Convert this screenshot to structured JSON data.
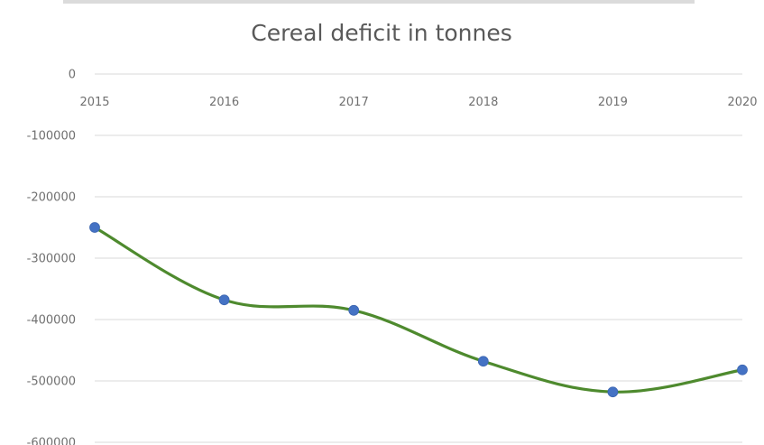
{
  "chart_data": {
    "type": "line",
    "title": "Cereal deficit in tonnes",
    "x": [
      "2015",
      "2016",
      "2017",
      "2018",
      "2019",
      "2020"
    ],
    "series": [
      {
        "values": [
          -250000,
          -368000,
          -385000,
          -468000,
          -518000,
          -482000
        ]
      }
    ],
    "y_ticks": [
      0,
      -100000,
      -200000,
      -300000,
      -400000,
      -500000,
      -600000
    ],
    "y_tick_labels": [
      "0",
      "-100000",
      "-200000",
      "-300000",
      "-400000",
      "-500000",
      "-600000"
    ],
    "ylim": [
      -600000,
      0
    ],
    "xlabel": "",
    "ylabel": "",
    "x_axis_position": "top",
    "grid": true,
    "smooth": true,
    "legend": "none",
    "colors": {
      "line": "#4e8a2e",
      "marker": "#4472c4",
      "grid": "#d9d9d9",
      "text": "#595959"
    }
  }
}
